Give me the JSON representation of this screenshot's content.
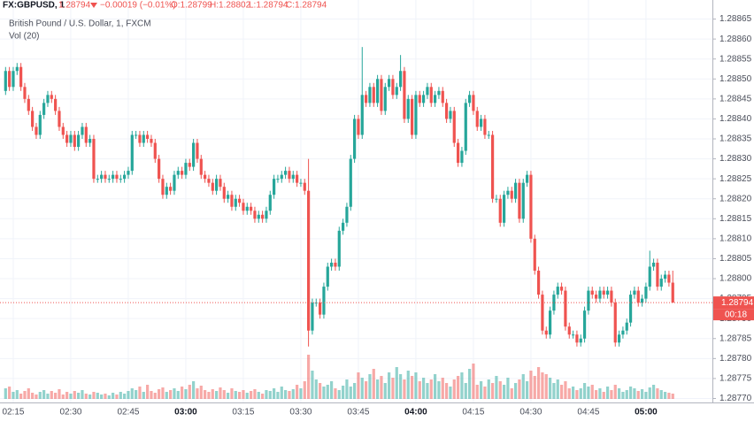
{
  "header": {
    "symbol": "FX:GBPUSD, 1",
    "last": "1.28794",
    "change": "−0.00019 (−0.01%)",
    "open": "O:1.28799",
    "high": "H:1.28802",
    "low": "L:1.28794",
    "close": "C:1.28794"
  },
  "legend": {
    "name": "British Pound / U.S. Dollar, 1, FXCM",
    "volume": "Vol (20)"
  },
  "price_label": "1.28794",
  "countdown": "00:18",
  "chart_data": {
    "type": "candlestick",
    "up_color": "#26a69a",
    "down_color": "#ef5350",
    "grid": true,
    "ylim": [
      1.28769,
      1.28868
    ],
    "yticks": [
      {
        "value": 1.2877,
        "label": "1.28770"
      },
      1.28775,
      {
        "value": 1.2878,
        "label": "1.28780"
      },
      1.28785,
      {
        "value": 1.2879,
        "label": "1.28790"
      },
      1.28795,
      {
        "value": 1.288,
        "label": "1.28800"
      },
      1.28805,
      {
        "value": 1.2881,
        "label": "1.28810"
      },
      1.28815,
      {
        "value": 1.2882,
        "label": "1.28820"
      },
      1.28825,
      {
        "value": 1.2883,
        "label": "1.28830"
      },
      1.28835,
      {
        "value": 1.2884,
        "label": "1.28840"
      },
      1.28845,
      {
        "value": 1.2885,
        "label": "1.28850"
      },
      1.28855,
      {
        "value": 1.2886,
        "label": "1.28860"
      },
      1.28865
    ],
    "xticks": [
      "02:15",
      "02:30",
      "02:45",
      "03:00",
      "03:15",
      "03:30",
      "03:45",
      "04:00",
      "04:15",
      "04:30",
      "04:45",
      "05:00"
    ],
    "x": [
      "02:13",
      "02:14",
      "02:15",
      "02:16",
      "02:17",
      "02:18",
      "02:19",
      "02:20",
      "02:21",
      "02:22",
      "02:23",
      "02:24",
      "02:25",
      "02:26",
      "02:27",
      "02:28",
      "02:29",
      "02:30",
      "02:31",
      "02:32",
      "02:33",
      "02:34",
      "02:35",
      "02:36",
      "02:37",
      "02:38",
      "02:39",
      "02:40",
      "02:41",
      "02:42",
      "02:43",
      "02:44",
      "02:45",
      "02:46",
      "02:47",
      "02:48",
      "02:49",
      "02:50",
      "02:51",
      "02:52",
      "02:53",
      "02:54",
      "02:55",
      "02:56",
      "02:57",
      "02:58",
      "02:59",
      "03:00",
      "03:01",
      "03:02",
      "03:03",
      "03:04",
      "03:05",
      "03:06",
      "03:07",
      "03:08",
      "03:09",
      "03:10",
      "03:11",
      "03:12",
      "03:13",
      "03:14",
      "03:15",
      "03:16",
      "03:17",
      "03:18",
      "03:19",
      "03:20",
      "03:21",
      "03:22",
      "03:23",
      "03:24",
      "03:25",
      "03:26",
      "03:27",
      "03:28",
      "03:29",
      "03:30",
      "03:31",
      "03:32",
      "03:33",
      "03:34",
      "03:35",
      "03:36",
      "03:37",
      "03:38",
      "03:39",
      "03:40",
      "03:41",
      "03:42",
      "03:43",
      "03:44",
      "03:45",
      "03:46",
      "03:47",
      "03:48",
      "03:49",
      "03:50",
      "03:51",
      "03:52",
      "03:53",
      "03:54",
      "03:55",
      "03:56",
      "03:57",
      "03:58",
      "03:59",
      "04:00",
      "04:01",
      "04:02",
      "04:03",
      "04:04",
      "04:05",
      "04:06",
      "04:07",
      "04:08",
      "04:09",
      "04:10",
      "04:11",
      "04:12",
      "04:13",
      "04:14",
      "04:15",
      "04:16",
      "04:17",
      "04:18",
      "04:19",
      "04:20",
      "04:21",
      "04:22",
      "04:23",
      "04:24",
      "04:25",
      "04:26",
      "04:27",
      "04:28",
      "04:29",
      "04:30",
      "04:31",
      "04:32",
      "04:33",
      "04:34",
      "04:35",
      "04:36",
      "04:37",
      "04:38",
      "04:39",
      "04:40",
      "04:41",
      "04:42",
      "04:43",
      "04:44",
      "04:45",
      "04:46",
      "04:47",
      "04:48",
      "04:49",
      "04:50",
      "04:51",
      "04:52",
      "04:53",
      "04:54",
      "04:55",
      "04:56",
      "04:57",
      "04:58",
      "04:59",
      "05:00",
      "05:01",
      "05:02",
      "05:03",
      "05:04",
      "05:05",
      "05:06",
      "05:07"
    ],
    "open": [
      1.28847,
      1.28852,
      1.28848,
      1.28852,
      1.28853,
      1.28848,
      1.28845,
      1.28842,
      1.28838,
      1.28836,
      1.28841,
      1.28844,
      1.28846,
      1.28845,
      1.28842,
      1.28838,
      1.28836,
      1.28834,
      1.28836,
      1.28833,
      1.28836,
      1.28838,
      1.28834,
      1.28835,
      1.28825,
      1.28825,
      1.28826,
      1.28825,
      1.28825,
      1.28826,
      1.28825,
      1.28825,
      1.28826,
      1.28827,
      1.28836,
      1.28836,
      1.28834,
      1.28836,
      1.28835,
      1.28834,
      1.2883,
      1.28825,
      1.28821,
      1.28823,
      1.28822,
      1.28826,
      1.28827,
      1.28826,
      1.28829,
      1.28828,
      1.28834,
      1.2883,
      1.28826,
      1.28825,
      1.28824,
      1.28822,
      1.28825,
      1.28823,
      1.2882,
      1.28821,
      1.28818,
      1.2882,
      1.28819,
      1.28817,
      1.28818,
      1.28817,
      1.28815,
      1.28816,
      1.28815,
      1.28817,
      1.28821,
      1.28825,
      1.28825,
      1.28826,
      1.28827,
      1.28825,
      1.28826,
      1.28824,
      1.28824,
      1.28822,
      1.28787,
      1.28794,
      1.28794,
      1.28791,
      1.28798,
      1.28803,
      1.28804,
      1.28803,
      1.28812,
      1.28814,
      1.28818,
      1.2883,
      1.2884,
      1.28836,
      1.28846,
      1.28844,
      1.28848,
      1.28844,
      1.2885,
      1.28842,
      1.28848,
      1.2885,
      1.28846,
      1.28848,
      1.28852,
      1.2884,
      1.28845,
      1.28836,
      1.28846,
      1.28844,
      1.28846,
      1.28848,
      1.28844,
      1.28846,
      1.28847,
      1.28844,
      1.2884,
      1.28842,
      1.28834,
      1.28829,
      1.28832,
      1.28844,
      1.28846,
      1.28842,
      1.28838,
      1.2884,
      1.28836,
      1.28836,
      1.2882,
      1.2882,
      1.28814,
      1.28821,
      1.28822,
      1.2882,
      1.28824,
      1.28815,
      1.28824,
      1.28826,
      1.2881,
      1.28802,
      1.28796,
      1.28787,
      1.28786,
      1.28792,
      1.28796,
      1.28798,
      1.28797,
      1.28788,
      1.28786,
      1.28786,
      1.28784,
      1.28785,
      1.28792,
      1.28797,
      1.28796,
      1.28795,
      1.28797,
      1.28796,
      1.28797,
      1.28794,
      1.28784,
      1.28786,
      1.28787,
      1.28789,
      1.28796,
      1.28797,
      1.28794,
      1.28795,
      1.28798,
      1.28803,
      1.28804,
      1.28798,
      1.288,
      1.28801,
      1.28799
    ],
    "high": [
      1.28853,
      1.28853,
      1.28853,
      1.28854,
      1.28854,
      1.28849,
      1.28846,
      1.28843,
      1.28839,
      1.28842,
      1.28845,
      1.28847,
      1.28847,
      1.28846,
      1.28843,
      1.28839,
      1.28837,
      1.28837,
      1.28837,
      1.28837,
      1.28839,
      1.28839,
      1.28836,
      1.28836,
      1.28826,
      1.28827,
      1.28827,
      1.28826,
      1.28827,
      1.28827,
      1.28826,
      1.28827,
      1.28828,
      1.28837,
      1.28837,
      1.28837,
      1.28837,
      1.28837,
      1.28836,
      1.28835,
      1.28831,
      1.28826,
      1.28824,
      1.28824,
      1.28827,
      1.28828,
      1.28828,
      1.2883,
      1.2883,
      1.28835,
      1.28835,
      1.28831,
      1.28827,
      1.28826,
      1.28825,
      1.28826,
      1.28826,
      1.28824,
      1.28822,
      1.28822,
      1.28821,
      1.28821,
      1.2882,
      1.28819,
      1.28819,
      1.28818,
      1.28817,
      1.28817,
      1.28818,
      1.28822,
      1.28826,
      1.28826,
      1.28827,
      1.28828,
      1.28828,
      1.28827,
      1.28827,
      1.28825,
      1.28825,
      1.2883,
      1.28795,
      1.28795,
      1.28795,
      1.28799,
      1.28804,
      1.28805,
      1.28805,
      1.28813,
      1.28815,
      1.28819,
      1.28831,
      1.28841,
      1.28841,
      1.28858,
      1.28847,
      1.28849,
      1.28849,
      1.28851,
      1.28851,
      1.28849,
      1.28851,
      1.28851,
      1.28849,
      1.28856,
      1.28853,
      1.28846,
      1.28846,
      1.28847,
      1.28847,
      1.28847,
      1.28849,
      1.28849,
      1.28847,
      1.28848,
      1.28848,
      1.28845,
      1.28843,
      1.28843,
      1.28835,
      1.28833,
      1.28845,
      1.28847,
      1.28847,
      1.28843,
      1.28841,
      1.28841,
      1.28837,
      1.28837,
      1.28821,
      1.28821,
      1.28822,
      1.28823,
      1.28823,
      1.28825,
      1.28825,
      1.28825,
      1.28827,
      1.28827,
      1.28811,
      1.28803,
      1.28797,
      1.28788,
      1.28793,
      1.28797,
      1.28799,
      1.28799,
      1.28798,
      1.28789,
      1.28787,
      1.28787,
      1.28786,
      1.28793,
      1.28798,
      1.28798,
      1.28797,
      1.28798,
      1.28798,
      1.28798,
      1.28798,
      1.28795,
      1.28787,
      1.28788,
      1.2879,
      1.28797,
      1.28798,
      1.28798,
      1.28796,
      1.28799,
      1.28807,
      1.28805,
      1.28805,
      1.28801,
      1.28802,
      1.28802,
      1.28802
    ],
    "low": [
      1.28846,
      1.28847,
      1.28847,
      1.28851,
      1.28847,
      1.28844,
      1.28841,
      1.28837,
      1.28835,
      1.28835,
      1.2884,
      1.28843,
      1.28844,
      1.28841,
      1.28837,
      1.28835,
      1.28833,
      1.28833,
      1.28832,
      1.28832,
      1.28835,
      1.28833,
      1.28833,
      1.28824,
      1.28824,
      1.28824,
      1.28824,
      1.28824,
      1.28824,
      1.28824,
      1.28824,
      1.28824,
      1.28825,
      1.28826,
      1.28835,
      1.28833,
      1.28833,
      1.28834,
      1.28833,
      1.28829,
      1.28824,
      1.2882,
      1.2882,
      1.28821,
      1.28821,
      1.28825,
      1.28825,
      1.28825,
      1.28827,
      1.28827,
      1.28829,
      1.28825,
      1.28824,
      1.28823,
      1.28821,
      1.28821,
      1.28822,
      1.28819,
      1.28819,
      1.28817,
      1.28817,
      1.28818,
      1.28816,
      1.28816,
      1.28816,
      1.28814,
      1.28814,
      1.28814,
      1.28814,
      1.28816,
      1.2882,
      1.28824,
      1.28824,
      1.28825,
      1.28824,
      1.28824,
      1.28823,
      1.28823,
      1.28821,
      1.28783,
      1.28786,
      1.28793,
      1.2879,
      1.2879,
      1.28797,
      1.28802,
      1.28802,
      1.28802,
      1.28811,
      1.28813,
      1.28817,
      1.28829,
      1.28835,
      1.28835,
      1.28843,
      1.28843,
      1.28843,
      1.28843,
      1.28841,
      1.28841,
      1.28847,
      1.28845,
      1.28845,
      1.28847,
      1.28839,
      1.28839,
      1.28835,
      1.28835,
      1.28843,
      1.28843,
      1.28845,
      1.28843,
      1.28843,
      1.28845,
      1.28843,
      1.28839,
      1.28839,
      1.28833,
      1.28828,
      1.28828,
      1.28831,
      1.28843,
      1.28841,
      1.28837,
      1.28837,
      1.28835,
      1.28835,
      1.28819,
      1.28819,
      1.28813,
      1.28813,
      1.2882,
      1.28819,
      1.28819,
      1.28814,
      1.28814,
      1.28823,
      1.28809,
      1.28801,
      1.28795,
      1.28786,
      1.28785,
      1.28785,
      1.28791,
      1.28795,
      1.28796,
      1.28787,
      1.28785,
      1.28785,
      1.28783,
      1.28783,
      1.28784,
      1.28791,
      1.28795,
      1.28794,
      1.28794,
      1.28795,
      1.28795,
      1.28793,
      1.28783,
      1.28783,
      1.28785,
      1.28786,
      1.28788,
      1.28795,
      1.28793,
      1.28793,
      1.28794,
      1.28797,
      1.28802,
      1.28797,
      1.28797,
      1.28799,
      1.28798,
      1.28794
    ],
    "close": [
      1.28852,
      1.28848,
      1.28852,
      1.28853,
      1.28848,
      1.28845,
      1.28842,
      1.28838,
      1.28836,
      1.28841,
      1.28844,
      1.28846,
      1.28845,
      1.28842,
      1.28838,
      1.28836,
      1.28834,
      1.28836,
      1.28833,
      1.28836,
      1.28838,
      1.28834,
      1.28835,
      1.28825,
      1.28825,
      1.28826,
      1.28825,
      1.28825,
      1.28826,
      1.28825,
      1.28825,
      1.28826,
      1.28827,
      1.28836,
      1.28836,
      1.28834,
      1.28836,
      1.28835,
      1.28834,
      1.2883,
      1.28825,
      1.28821,
      1.28823,
      1.28822,
      1.28826,
      1.28827,
      1.28826,
      1.28829,
      1.28828,
      1.28834,
      1.2883,
      1.28826,
      1.28825,
      1.28824,
      1.28822,
      1.28825,
      1.28823,
      1.2882,
      1.28821,
      1.28818,
      1.2882,
      1.28819,
      1.28817,
      1.28818,
      1.28817,
      1.28815,
      1.28816,
      1.28815,
      1.28817,
      1.28821,
      1.28825,
      1.28825,
      1.28826,
      1.28827,
      1.28825,
      1.28826,
      1.28824,
      1.28824,
      1.28822,
      1.28787,
      1.28794,
      1.28794,
      1.28791,
      1.28798,
      1.28803,
      1.28804,
      1.28803,
      1.28812,
      1.28814,
      1.28818,
      1.2883,
      1.2884,
      1.28836,
      1.28846,
      1.28844,
      1.28848,
      1.28844,
      1.2885,
      1.28842,
      1.28848,
      1.2885,
      1.28846,
      1.28848,
      1.28852,
      1.2884,
      1.28845,
      1.28836,
      1.28846,
      1.28844,
      1.28846,
      1.28848,
      1.28844,
      1.28846,
      1.28847,
      1.28844,
      1.2884,
      1.28842,
      1.28834,
      1.28829,
      1.28832,
      1.28844,
      1.28846,
      1.28842,
      1.28838,
      1.2884,
      1.28836,
      1.28836,
      1.2882,
      1.2882,
      1.28814,
      1.28821,
      1.28822,
      1.2882,
      1.28824,
      1.28815,
      1.28824,
      1.28826,
      1.2881,
      1.28802,
      1.28796,
      1.28787,
      1.28786,
      1.28792,
      1.28796,
      1.28798,
      1.28797,
      1.28788,
      1.28786,
      1.28786,
      1.28784,
      1.28785,
      1.28792,
      1.28797,
      1.28796,
      1.28795,
      1.28797,
      1.28796,
      1.28797,
      1.28794,
      1.28784,
      1.28786,
      1.28787,
      1.28789,
      1.28796,
      1.28797,
      1.28794,
      1.28795,
      1.28798,
      1.28803,
      1.28804,
      1.28798,
      1.288,
      1.28801,
      1.28799,
      1.28794
    ],
    "volume": [
      12,
      14,
      8,
      10,
      6,
      9,
      12,
      7,
      5,
      8,
      10,
      6,
      9,
      7,
      11,
      5,
      8,
      6,
      9,
      7,
      10,
      6,
      5,
      8,
      7,
      5,
      6,
      4,
      7,
      5,
      8,
      6,
      9,
      12,
      10,
      14,
      8,
      16,
      9,
      7,
      11,
      13,
      8,
      10,
      12,
      9,
      14,
      11,
      16,
      20,
      12,
      15,
      10,
      8,
      11,
      9,
      13,
      10,
      7,
      12,
      9,
      8,
      10,
      7,
      9,
      11,
      8,
      6,
      10,
      9,
      12,
      8,
      14,
      10,
      9,
      11,
      16,
      12,
      20,
      50,
      32,
      22,
      18,
      14,
      16,
      20,
      12,
      10,
      15,
      22,
      14,
      18,
      30,
      24,
      20,
      28,
      34,
      22,
      26,
      18,
      30,
      24,
      36,
      28,
      22,
      32,
      26,
      30,
      20,
      24,
      18,
      22,
      28,
      20,
      24,
      18,
      14,
      22,
      26,
      30,
      18,
      34,
      40,
      16,
      20,
      14,
      22,
      18,
      26,
      20,
      16,
      24,
      12,
      18,
      22,
      28,
      20,
      32,
      26,
      36,
      30,
      28,
      24,
      18,
      22,
      16,
      20,
      12,
      14,
      10,
      12,
      18,
      14,
      16,
      10,
      12,
      8,
      14,
      10,
      16,
      12,
      8,
      10,
      14,
      12,
      9,
      11,
      8,
      13,
      16,
      12,
      10,
      8,
      7,
      6
    ]
  }
}
